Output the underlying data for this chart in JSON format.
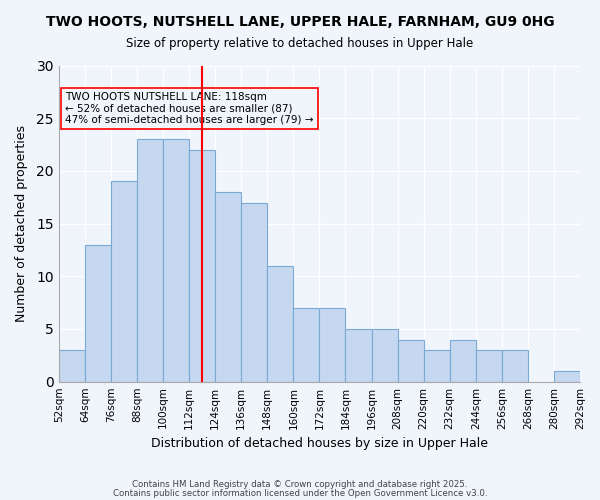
{
  "title": "TWO HOOTS, NUTSHELL LANE, UPPER HALE, FARNHAM, GU9 0HG",
  "subtitle": "Size of property relative to detached houses in Upper Hale",
  "xlabel": "Distribution of detached houses by size in Upper Hale",
  "ylabel": "Number of detached properties",
  "bin_labels": [
    "52sqm",
    "64sqm",
    "76sqm",
    "88sqm",
    "100sqm",
    "112sqm",
    "124sqm",
    "136sqm",
    "148sqm",
    "160sqm",
    "172sqm",
    "184sqm",
    "196sqm",
    "208sqm",
    "220sqm",
    "232sqm",
    "244sqm",
    "256sqm",
    "268sqm",
    "280sqm",
    "292sqm"
  ],
  "bar_values": [
    3,
    13,
    19,
    23,
    23,
    22,
    18,
    17,
    11,
    7,
    7,
    5,
    5,
    4,
    3,
    4,
    3,
    3,
    0,
    1
  ],
  "bin_edges": [
    52,
    64,
    76,
    88,
    100,
    112,
    124,
    136,
    148,
    160,
    172,
    184,
    196,
    208,
    220,
    232,
    244,
    256,
    268,
    280,
    292
  ],
  "bar_color": "#c5d8f0",
  "bar_edge_color": "#7aaad4",
  "background_color": "#f0f4fb",
  "grid_color": "#ffffff",
  "vline_x": 118,
  "vline_color": "red",
  "annotation_text": "TWO HOOTS NUTSHELL LANE: 118sqm\n← 52% of detached houses are smaller (87)\n47% of semi-detached houses are larger (79) →",
  "annotation_box_edgecolor": "red",
  "ylim": [
    0,
    30
  ],
  "yticks": [
    0,
    5,
    10,
    15,
    20,
    25,
    30
  ],
  "footer_line1": "Contains HM Land Registry data © Crown copyright and database right 2025.",
  "footer_line2": "Contains public sector information licensed under the Open Government Licence v3.0."
}
